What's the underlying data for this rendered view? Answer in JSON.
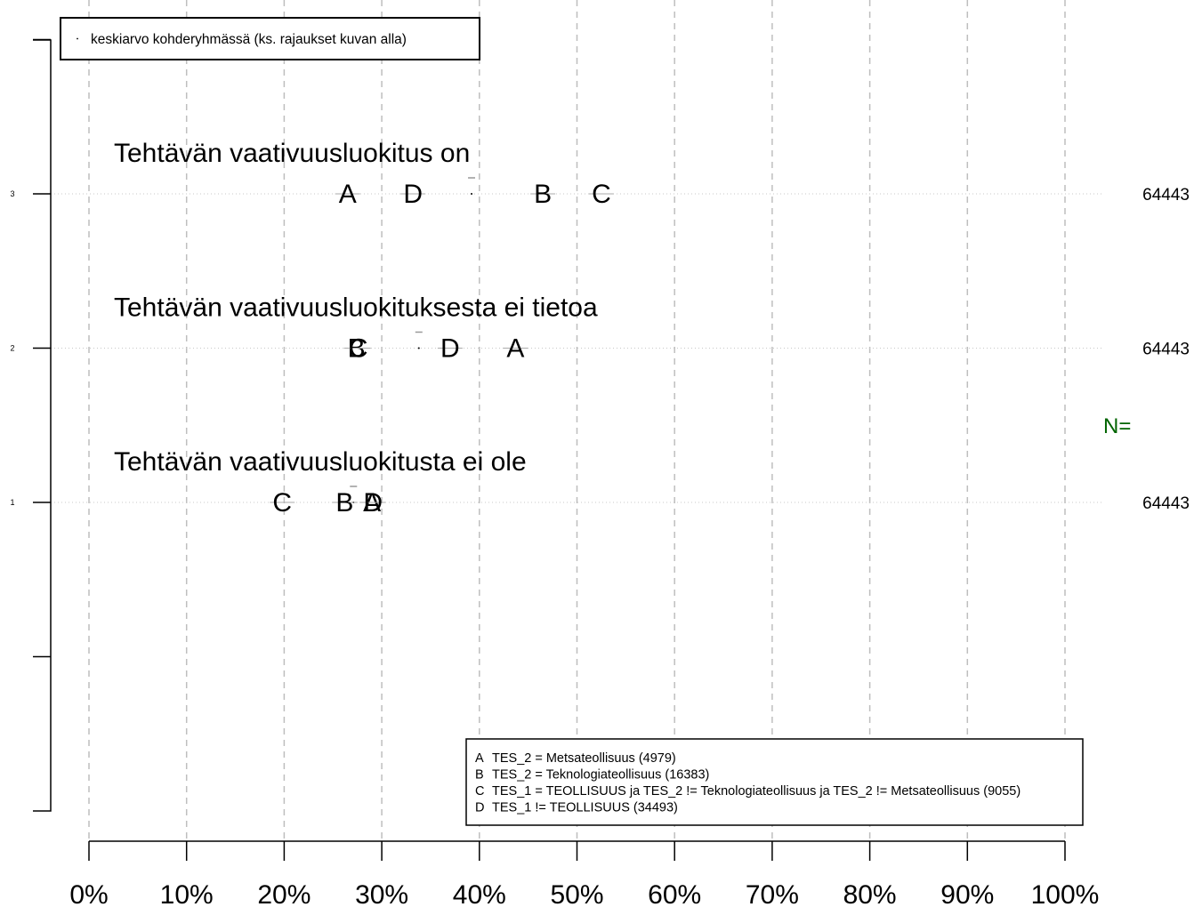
{
  "chart_data": {
    "type": "scatter",
    "title": "",
    "xlabel": "",
    "ylabel": "",
    "xlim": [
      0,
      100
    ],
    "ylim": [
      0,
      4
    ],
    "x_ticks": [
      {
        "value": 0,
        "label": "0%"
      },
      {
        "value": 10,
        "label": "10%"
      },
      {
        "value": 20,
        "label": "20%"
      },
      {
        "value": 30,
        "label": "30%"
      },
      {
        "value": 40,
        "label": "40%"
      },
      {
        "value": 50,
        "label": "50%"
      },
      {
        "value": 60,
        "label": "60%"
      },
      {
        "value": 70,
        "label": "70%"
      },
      {
        "value": 80,
        "label": "80%"
      },
      {
        "value": 90,
        "label": "90%"
      },
      {
        "value": 100,
        "label": "100%"
      }
    ],
    "y_ticks": [
      {
        "value": 1,
        "label": "1"
      },
      {
        "value": 2,
        "label": "2"
      },
      {
        "value": 3,
        "label": "3"
      }
    ],
    "grid": true,
    "n_label": "N=",
    "mean_legend": {
      "position": "top-left",
      "label": "keskiarvo kohderyhmässä (ks. rajaukset kuvan alla)"
    },
    "groups_legend": {
      "position": "bottom-right",
      "entries": [
        {
          "key": "A",
          "label": "TES_2 = Metsateollisuus (4979)"
        },
        {
          "key": "B",
          "label": "TES_2 = Teknologiateollisuus (16383)"
        },
        {
          "key": "C",
          "label": "TES_1 = TEOLLISUUS ja TES_2 != Teknologiateollisuus ja TES_2 != Metsateollisuus (9055)"
        },
        {
          "key": "D",
          "label": "TES_1 != TEOLLISUUS (34493)"
        }
      ]
    },
    "rows": [
      {
        "y": 3,
        "label": "Tehtävän vaativuusluokitus on",
        "n": "64443",
        "mean": 39.2,
        "points": [
          {
            "series": "A",
            "x": 26.5
          },
          {
            "series": "D",
            "x": 33.2
          },
          {
            "series": "B",
            "x": 46.5
          },
          {
            "series": "C",
            "x": 52.5
          }
        ]
      },
      {
        "y": 2,
        "label": "Tehtävän vaativuusluokituksesta ei tietoa",
        "n": "64443",
        "mean": 33.8,
        "points": [
          {
            "series": "B",
            "x": 27.4
          },
          {
            "series": "C",
            "x": 27.6
          },
          {
            "series": "D",
            "x": 37.0
          },
          {
            "series": "A",
            "x": 43.7
          }
        ]
      },
      {
        "y": 1,
        "label": "Tehtävän vaativuusluokitusta ei ole",
        "n": "64443",
        "mean": 27.1,
        "points": [
          {
            "series": "C",
            "x": 19.8
          },
          {
            "series": "B",
            "x": 26.2
          },
          {
            "series": "A",
            "x": 29.0
          },
          {
            "series": "D",
            "x": 29.1
          }
        ]
      }
    ]
  }
}
